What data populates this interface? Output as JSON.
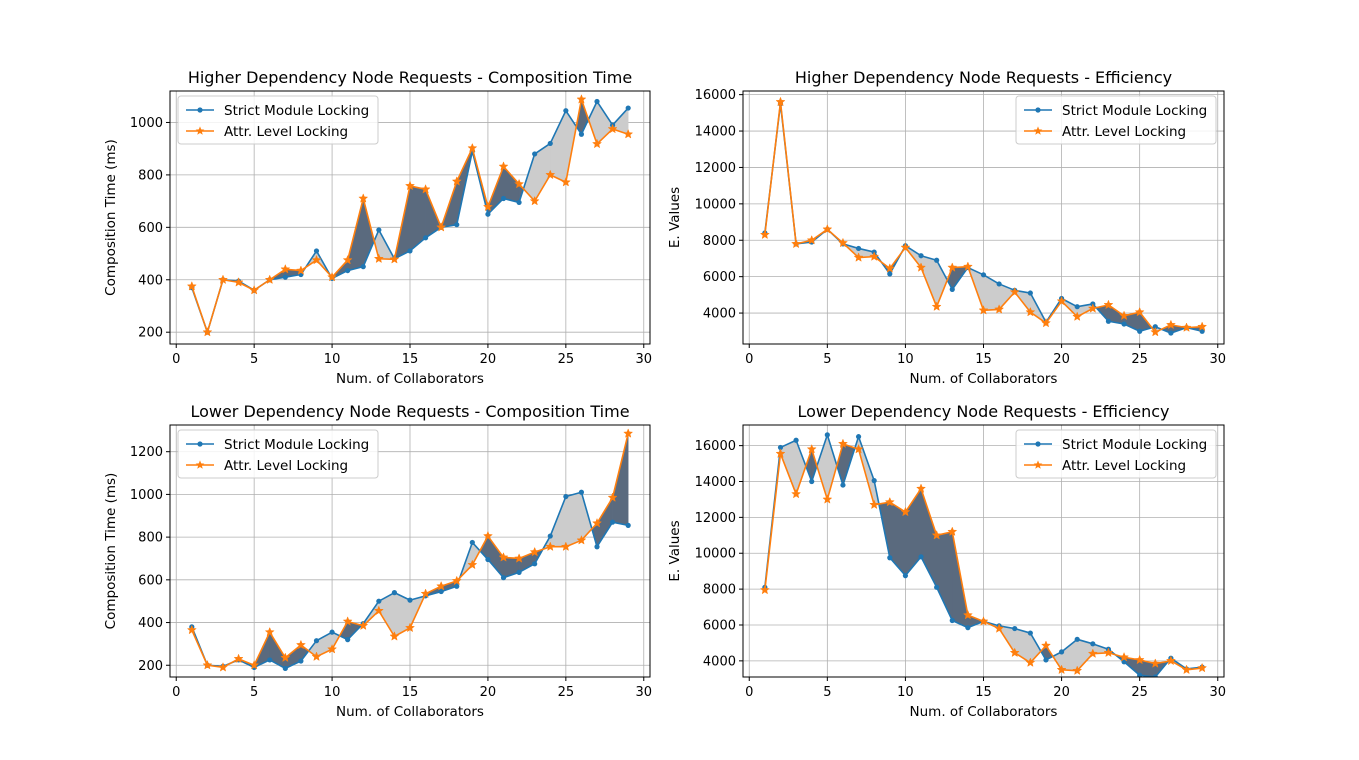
{
  "colors": {
    "strict": "#1f77b4",
    "attr": "#ff7f0e",
    "fill_strict_above": "#cccccc",
    "fill_attr_above": "#5a6a7e",
    "grid": "#b0b0b0"
  },
  "chart_data": [
    {
      "type": "line",
      "title": "Higher Dependency Node Requests - Composition Time",
      "xlabel": "Num. of Collaborators",
      "ylabel": "Composition Time (ms)",
      "xlim": [
        -0.4,
        30.4
      ],
      "ylim": [
        155,
        1120
      ],
      "xticks": [
        0,
        5,
        10,
        15,
        20,
        25,
        30
      ],
      "yticks": [
        200,
        400,
        600,
        800,
        1000
      ],
      "grid": true,
      "legend_position": "upper-left",
      "x": [
        1,
        2,
        3,
        4,
        5,
        6,
        7,
        8,
        9,
        10,
        11,
        12,
        13,
        14,
        15,
        16,
        17,
        18,
        19,
        20,
        21,
        22,
        23,
        24,
        25,
        26,
        27,
        28,
        29
      ],
      "series": [
        {
          "name": "Strict Module Locking",
          "marker": "dot",
          "values": [
            370,
            200,
            400,
            395,
            360,
            400,
            410,
            420,
            510,
            405,
            435,
            450,
            590,
            480,
            510,
            560,
            600,
            610,
            890,
            650,
            710,
            695,
            880,
            920,
            1045,
            955,
            1080,
            990,
            1055
          ]
        },
        {
          "name": "Attr. Level Locking",
          "marker": "star",
          "values": [
            375,
            200,
            400,
            390,
            360,
            400,
            440,
            435,
            475,
            410,
            475,
            710,
            480,
            478,
            758,
            745,
            600,
            775,
            902,
            678,
            832,
            765,
            700,
            800,
            772,
            1088,
            918,
            975,
            955
          ]
        }
      ]
    },
    {
      "type": "line",
      "title": "Higher Dependency Node Requests - Efficiency",
      "xlabel": "Num. of Collaborators",
      "ylabel": "E. Values",
      "xlim": [
        -0.4,
        30.4
      ],
      "ylim": [
        2300,
        16200
      ],
      "xticks": [
        0,
        5,
        10,
        15,
        20,
        25,
        30
      ],
      "yticks": [
        4000,
        6000,
        8000,
        10000,
        12000,
        14000,
        16000
      ],
      "grid": true,
      "legend_position": "upper-right",
      "x": [
        1,
        2,
        3,
        4,
        5,
        6,
        7,
        8,
        9,
        10,
        11,
        12,
        13,
        14,
        15,
        16,
        17,
        18,
        19,
        20,
        21,
        22,
        23,
        24,
        25,
        26,
        27,
        28,
        29
      ],
      "series": [
        {
          "name": "Strict Module Locking",
          "marker": "dot",
          "values": [
            8400,
            15500,
            7800,
            7900,
            8600,
            7800,
            7550,
            7350,
            6150,
            7700,
            7150,
            6900,
            5300,
            6500,
            6100,
            5600,
            5250,
            5100,
            3500,
            4800,
            4350,
            4500,
            3550,
            3400,
            3000,
            3250,
            2900,
            3200,
            3000
          ]
        },
        {
          "name": "Attr. Level Locking",
          "marker": "star",
          "values": [
            8300,
            15600,
            7800,
            8000,
            8600,
            7850,
            7050,
            7100,
            6450,
            7600,
            6500,
            4350,
            6500,
            6550,
            4150,
            4200,
            5150,
            4050,
            3450,
            4650,
            3800,
            4250,
            4450,
            3850,
            4050,
            2950,
            3350,
            3200,
            3250
          ]
        }
      ]
    },
    {
      "type": "line",
      "title": "Lower Dependency Node Requests - Composition Time",
      "xlabel": "Num. of Collaborators",
      "ylabel": "Composition Time (ms)",
      "xlim": [
        -0.4,
        30.4
      ],
      "ylim": [
        145,
        1325
      ],
      "xticks": [
        0,
        5,
        10,
        15,
        20,
        25,
        30
      ],
      "yticks": [
        200,
        400,
        600,
        800,
        1000,
        1200
      ],
      "grid": true,
      "legend_position": "upper-left",
      "x": [
        1,
        2,
        3,
        4,
        5,
        6,
        7,
        8,
        9,
        10,
        11,
        12,
        13,
        14,
        15,
        16,
        17,
        18,
        19,
        20,
        21,
        22,
        23,
        24,
        25,
        26,
        27,
        28,
        29
      ],
      "series": [
        {
          "name": "Strict Module Locking",
          "marker": "dot",
          "values": [
            380,
            200,
            195,
            225,
            190,
            225,
            185,
            220,
            315,
            355,
            320,
            395,
            500,
            540,
            505,
            525,
            545,
            570,
            775,
            695,
            610,
            635,
            675,
            805,
            990,
            1010,
            755,
            870,
            855
          ]
        },
        {
          "name": "Attr. Level Locking",
          "marker": "star",
          "values": [
            365,
            200,
            190,
            230,
            200,
            355,
            235,
            295,
            240,
            275,
            405,
            385,
            455,
            335,
            375,
            535,
            570,
            595,
            670,
            805,
            705,
            700,
            730,
            755,
            755,
            785,
            865,
            985,
            1285
          ]
        }
      ]
    },
    {
      "type": "line",
      "title": "Lower Dependency Node Requests - Efficiency",
      "xlabel": "Num. of Collaborators",
      "ylabel": "E. Values",
      "xlim": [
        -0.4,
        30.4
      ],
      "ylim": [
        3100,
        17150
      ],
      "xticks": [
        0,
        5,
        10,
        15,
        20,
        25,
        30
      ],
      "yticks": [
        4000,
        6000,
        8000,
        10000,
        12000,
        14000,
        16000
      ],
      "grid": true,
      "legend_position": "upper-right",
      "x": [
        1,
        2,
        3,
        4,
        5,
        6,
        7,
        8,
        9,
        10,
        11,
        12,
        13,
        14,
        15,
        16,
        17,
        18,
        19,
        20,
        21,
        22,
        23,
        24,
        25,
        26,
        27,
        28,
        29
      ],
      "series": [
        {
          "name": "Strict Module Locking",
          "marker": "dot",
          "values": [
            8100,
            15900,
            16300,
            14000,
            16600,
            13800,
            16500,
            14050,
            9750,
            8750,
            9800,
            8100,
            6250,
            5850,
            6200,
            5950,
            5800,
            5550,
            4050,
            4500,
            5200,
            4950,
            4650,
            3950,
            3200,
            3100,
            4150,
            3550,
            3650
          ]
        },
        {
          "name": "Attr. Level Locking",
          "marker": "star",
          "values": [
            7950,
            15550,
            13300,
            15800,
            13000,
            16100,
            15800,
            12700,
            12850,
            12300,
            13600,
            11000,
            11200,
            6550,
            6200,
            5800,
            4450,
            3900,
            4850,
            3500,
            3450,
            4400,
            4450,
            4200,
            4050,
            3850,
            4000,
            3500,
            3600
          ]
        }
      ]
    }
  ]
}
